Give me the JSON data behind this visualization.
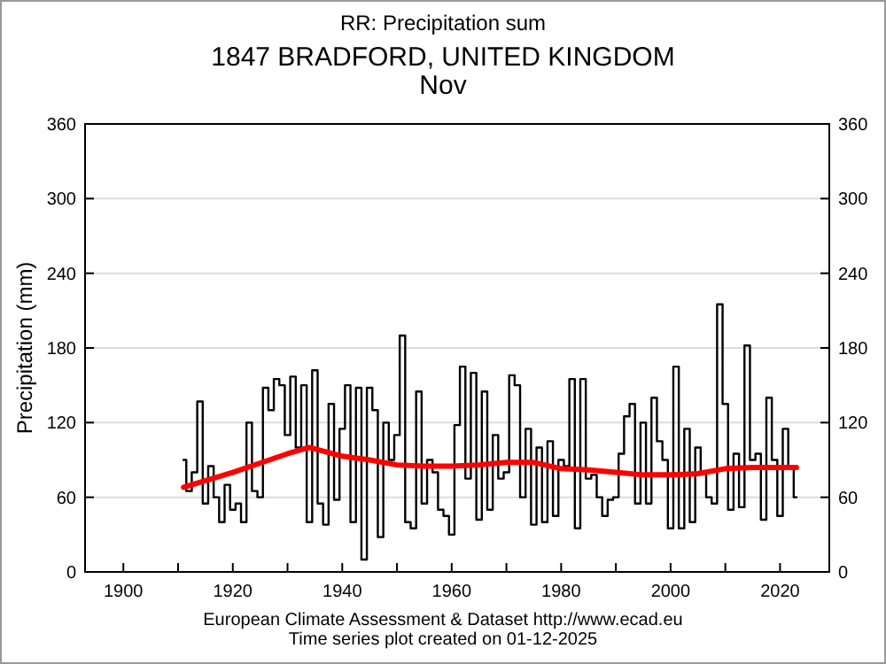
{
  "chart_data": {
    "type": "step",
    "title": "RR: Precipitation sum",
    "subtitle": "1847 BRADFORD, UNITED KINGDOM\nNov",
    "ylabel": "Precipitation (mm)",
    "annotations": [
      "European Climate Assessment & Dataset  http://www.ecad.eu",
      "Time series plot created on 01-12-2025"
    ],
    "xlim": [
      1893,
      2029
    ],
    "xticks": [
      1900,
      {
        "value": 1910,
        "label": null
      },
      1920,
      {
        "value": 1930,
        "label": null
      },
      1940,
      {
        "value": 1950,
        "label": null
      },
      1960,
      {
        "value": 1970,
        "label": null
      },
      1980,
      {
        "value": 1990,
        "label": null
      },
      2000,
      {
        "value": 2010,
        "label": null
      },
      2020
    ],
    "ylim": [
      0,
      360
    ],
    "yticks": [
      0,
      60,
      120,
      180,
      240,
      300,
      360
    ],
    "y2lim": [
      0,
      360
    ],
    "y2ticks": [
      0,
      60,
      120,
      180,
      240,
      300,
      360
    ],
    "grid": "y",
    "series": [
      {
        "color": "#000000",
        "x": [
          1911,
          1912,
          1913,
          1914,
          1915,
          1916,
          1917,
          1918,
          1919,
          1920,
          1921,
          1922,
          1923,
          1924,
          1925,
          1926,
          1927,
          1928,
          1929,
          1930,
          1931,
          1932,
          1933,
          1934,
          1935,
          1936,
          1937,
          1938,
          1939,
          1940,
          1941,
          1942,
          1943,
          1944,
          1945,
          1946,
          1947,
          1948,
          1949,
          1950,
          1951,
          1952,
          1953,
          1954,
          1955,
          1956,
          1957,
          1958,
          1959,
          1960,
          1961,
          1962,
          1963,
          1964,
          1965,
          1966,
          1967,
          1968,
          1969,
          1970,
          1971,
          1972,
          1973,
          1974,
          1975,
          1976,
          1977,
          1978,
          1979,
          1980,
          1981,
          1982,
          1983,
          1984,
          1985,
          1986,
          1987,
          1988,
          1989,
          1990,
          1991,
          1992,
          1993,
          1994,
          1995,
          1996,
          1997,
          1998,
          1999,
          2000,
          2001,
          2002,
          2003,
          2004,
          2005,
          2006,
          2007,
          2008,
          2009,
          2010,
          2011,
          2012,
          2013,
          2014,
          2015,
          2016,
          2017,
          2018,
          2019,
          2020,
          2021,
          2022,
          2023
        ],
        "values": [
          90,
          65,
          80,
          137,
          55,
          85,
          60,
          40,
          70,
          50,
          55,
          40,
          120,
          65,
          60,
          148,
          130,
          155,
          150,
          110,
          157,
          100,
          150,
          40,
          162,
          55,
          38,
          135,
          58,
          115,
          150,
          40,
          148,
          10,
          148,
          130,
          28,
          120,
          90,
          110,
          190,
          40,
          35,
          145,
          55,
          90,
          80,
          50,
          45,
          30,
          118,
          165,
          75,
          160,
          42,
          145,
          50,
          110,
          75,
          80,
          158,
          150,
          60,
          115,
          38,
          100,
          40,
          105,
          45,
          90,
          85,
          155,
          35,
          155,
          75,
          78,
          60,
          45,
          58,
          60,
          95,
          125,
          135,
          55,
          120,
          55,
          140,
          105,
          90,
          35,
          165,
          35,
          115,
          40,
          100,
          80,
          60,
          55,
          215,
          135,
          50,
          95,
          52,
          182,
          90,
          95,
          42,
          140,
          90,
          45,
          115,
          85,
          60
        ]
      },
      {
        "type": "line",
        "color": "#ff0000",
        "x": [
          1911,
          1920,
          1930,
          1934,
          1940,
          1945,
          1950,
          1955,
          1960,
          1965,
          1970,
          1975,
          1980,
          1985,
          1990,
          1995,
          2000,
          2005,
          2010,
          2015,
          2020,
          2023
        ],
        "values": [
          68,
          80,
          95,
          100,
          93,
          90,
          86,
          85,
          85,
          86,
          88,
          88,
          83,
          82,
          80,
          78,
          78,
          79,
          83,
          84,
          84,
          84
        ]
      }
    ]
  }
}
